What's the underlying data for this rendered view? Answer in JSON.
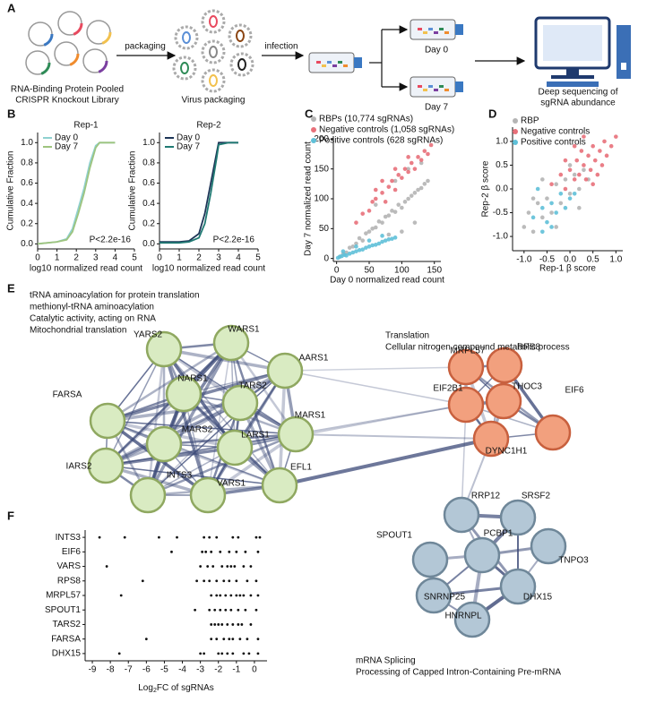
{
  "panel_labels": [
    "A",
    "B",
    "C",
    "D",
    "E",
    "F"
  ],
  "schematic": {
    "library_label": [
      "RNA-Binding Protein Pooled",
      "CRISPR Knockout Library"
    ],
    "packaging": "packaging",
    "virus_label": "Virus packaging",
    "infection": "infection",
    "day0": "Day 0",
    "day7": "Day 7",
    "sequencing_label": [
      "Deep sequencing of",
      "sgRNA abundance"
    ]
  },
  "chart_data": [
    {
      "type": "line",
      "title": "Rep-1",
      "xlabel": "log10 normalized read count",
      "ylabel": "Cumulative Fraction",
      "annotation": "P<2.2e-16",
      "x": [
        0,
        1,
        1.5,
        1.8,
        2.1,
        2.4,
        2.7,
        3.0,
        3.2,
        4.0
      ],
      "series": [
        {
          "name": "Day 0",
          "color": "#8fd1d0",
          "values": [
            0,
            0.02,
            0.05,
            0.15,
            0.35,
            0.55,
            0.8,
            0.97,
            1,
            1
          ]
        },
        {
          "name": "Day 7",
          "color": "#9ec47e",
          "values": [
            0,
            0.02,
            0.04,
            0.12,
            0.3,
            0.5,
            0.75,
            0.95,
            1,
            1
          ]
        }
      ],
      "xlim": [
        0,
        5
      ],
      "xticks": [
        0,
        1,
        2,
        3,
        4,
        5
      ],
      "ylim": [
        -0.05,
        1.1
      ],
      "yticks": [
        {
          "value": 0,
          "label": "0.0"
        },
        0.2,
        0.4,
        0.6,
        0.8,
        {
          "value": 1,
          "label": "1.0"
        }
      ]
    },
    {
      "type": "line",
      "title": "Rep-2",
      "xlabel": "log10 normalized read count",
      "ylabel": "Cumulative Fraction",
      "annotation": "P<2.2e-16",
      "x": [
        0,
        1,
        1.5,
        2.0,
        2.3,
        2.6,
        2.9,
        3.0,
        3.5,
        4.0
      ],
      "series": [
        {
          "name": "Day 0",
          "color": "#1d3557",
          "values": [
            0.02,
            0.02,
            0.03,
            0.1,
            0.3,
            0.6,
            0.9,
            1,
            1,
            1
          ]
        },
        {
          "name": "Day 7",
          "color": "#207a73",
          "values": [
            0.01,
            0.01,
            0.02,
            0.06,
            0.2,
            0.5,
            0.85,
            0.98,
            1,
            1
          ]
        }
      ],
      "xlim": [
        0,
        5
      ],
      "xticks": [
        0,
        1,
        2,
        3,
        4,
        5
      ],
      "ylim": [
        -0.05,
        1.1
      ],
      "yticks": [
        {
          "value": 0,
          "label": "0.0"
        },
        0.2,
        0.4,
        0.6,
        0.8,
        {
          "value": 1,
          "label": "1.0"
        }
      ]
    },
    {
      "type": "scatter",
      "xlabel": "Day 0 normalized read count",
      "ylabel": "Day 7 normalized read count",
      "xlim": [
        -5,
        160
      ],
      "xticks": [
        0,
        50,
        100,
        150
      ],
      "ylim": [
        -5,
        205
      ],
      "yticks": [
        0,
        50,
        100,
        150,
        200
      ],
      "series": [
        {
          "name": "RBPs (10,774 sgRNAs)",
          "color": "#b4b4b4",
          "x": [
            5,
            10,
            15,
            20,
            25,
            30,
            35,
            40,
            45,
            50,
            55,
            60,
            65,
            70,
            75,
            80,
            85,
            90,
            95,
            100,
            105,
            110,
            115,
            120,
            125,
            130,
            135,
            140,
            100,
            120,
            80,
            60,
            90,
            110,
            130
          ],
          "y": [
            3,
            8,
            10,
            18,
            20,
            25,
            34,
            30,
            42,
            45,
            50,
            52,
            62,
            60,
            70,
            72,
            80,
            78,
            90,
            85,
            95,
            100,
            105,
            110,
            115,
            118,
            125,
            130,
            45,
            60,
            40,
            90,
            130,
            150,
            160
          ]
        },
        {
          "name": "Negative controls (1,058 sgRNAs)",
          "color": "#e8707a",
          "x": [
            30,
            40,
            50,
            55,
            60,
            70,
            75,
            80,
            85,
            90,
            95,
            100,
            105,
            110,
            115,
            120,
            125,
            130,
            135,
            140,
            145,
            70,
            90,
            110,
            60
          ],
          "y": [
            60,
            75,
            80,
            95,
            100,
            110,
            95,
            120,
            130,
            115,
            140,
            135,
            150,
            145,
            160,
            150,
            170,
            165,
            180,
            175,
            190,
            130,
            150,
            170,
            115
          ]
        },
        {
          "name": "Positive controls (628 sgRNAs)",
          "color": "#5fc0d8",
          "x": [
            2,
            5,
            8,
            12,
            15,
            20,
            25,
            30,
            35,
            40,
            45,
            50,
            55,
            60,
            65,
            70,
            75,
            80,
            85,
            90,
            10,
            30,
            50,
            70
          ],
          "y": [
            1,
            3,
            4,
            6,
            5,
            8,
            10,
            12,
            14,
            15,
            18,
            20,
            22,
            23,
            25,
            28,
            30,
            32,
            33,
            35,
            12,
            20,
            30,
            38
          ]
        }
      ]
    },
    {
      "type": "scatter",
      "xlabel": "Rep-1 β score",
      "ylabel": "Rep-2 β score",
      "xlim": [
        -1.25,
        1.15
      ],
      "xticks": [
        {
          "value": -1,
          "label": "-1.0"
        },
        -0.5,
        {
          "value": 0,
          "label": "0.0"
        },
        0.5,
        {
          "value": 1,
          "label": "1.0"
        }
      ],
      "ylim": [
        -1.3,
        1.3
      ],
      "yticks": [
        {
          "value": -1,
          "label": "-1.0"
        },
        -0.5,
        {
          "value": 0,
          "label": "0.0"
        },
        0.5,
        {
          "value": 1,
          "label": "1.0"
        }
      ],
      "series": [
        {
          "name": "RBP",
          "color": "#b4b4b4",
          "x": [
            -1.0,
            -0.9,
            -0.8,
            -0.7,
            -0.6,
            -0.5,
            -0.4,
            -0.3,
            -0.2,
            -0.1,
            0.0,
            0.1,
            0.2,
            0.3,
            0.4,
            -0.6,
            -0.3,
            0.0,
            -0.8,
            0.2
          ],
          "y": [
            -0.8,
            -0.5,
            -0.9,
            -0.3,
            -0.6,
            -0.2,
            -0.5,
            0.1,
            -0.3,
            0.2,
            -0.1,
            0.3,
            0.0,
            0.4,
            0.2,
            0.2,
            -0.8,
            0.5,
            -0.2,
            -0.4
          ]
        },
        {
          "name": "Negative controls",
          "color": "#e8707a",
          "x": [
            -0.4,
            -0.2,
            -0.1,
            0.0,
            0.1,
            0.15,
            0.2,
            0.25,
            0.3,
            0.35,
            0.4,
            0.45,
            0.5,
            0.55,
            0.6,
            0.65,
            0.7,
            0.75,
            0.8,
            0.9,
            1.0,
            0.3,
            0.1,
            -0.1,
            0.5
          ],
          "y": [
            0.1,
            0.3,
            0.0,
            0.4,
            0.2,
            0.6,
            0.3,
            0.8,
            0.5,
            0.2,
            0.7,
            0.4,
            0.9,
            0.6,
            0.3,
            0.8,
            0.5,
            1.0,
            0.7,
            0.9,
            1.1,
            1.1,
            0.9,
            0.6,
            0.1
          ]
        },
        {
          "name": "Positive controls",
          "color": "#5fc0d8",
          "x": [
            -0.8,
            -0.6,
            -0.5,
            -0.4,
            -0.3,
            -0.2,
            -0.1,
            0.0,
            -0.6,
            -0.4,
            0.1,
            -0.7
          ],
          "y": [
            -0.6,
            -0.4,
            -0.7,
            -0.3,
            -0.5,
            -0.1,
            -0.4,
            -0.2,
            -0.9,
            -0.8,
            -0.1,
            0.0
          ]
        }
      ]
    },
    {
      "type": "strip",
      "xlabel_parts": [
        "Log",
        "2",
        "FC of sgRNAs"
      ],
      "color": "#111111",
      "categories": [
        "INTS3",
        "EIF6",
        "VARS",
        "RPS8",
        "MRPL57",
        "SPOUT1",
        "TARS2",
        "FARSA",
        "DHX15"
      ],
      "values": [
        [
          -8.6,
          -7.2,
          -5.3,
          -4.3,
          -2.8,
          -2.5,
          -2.1,
          -1.2,
          -0.9,
          0.1,
          0.3
        ],
        [
          -4.6,
          -2.9,
          -2.7,
          -2.4,
          -1.9,
          -1.4,
          -1.0,
          -0.5,
          0.2
        ],
        [
          -8.2,
          -3.0,
          -2.6,
          -2.3,
          -1.8,
          -1.5,
          -1.3,
          -1.1,
          -0.6,
          -0.2
        ],
        [
          -6.2,
          -3.2,
          -2.8,
          -2.5,
          -2.1,
          -1.7,
          -1.4,
          -1.0,
          -0.4,
          0.1
        ],
        [
          -7.4,
          -2.4,
          -2.1,
          -1.9,
          -1.6,
          -1.3,
          -1.0,
          -0.8,
          -0.6,
          -0.2,
          0.2
        ],
        [
          -3.3,
          -2.5,
          -2.2,
          -1.9,
          -1.6,
          -1.3,
          -0.9,
          -0.5,
          0.1
        ],
        [
          -2.4,
          -2.2,
          -2.0,
          -1.8,
          -1.5,
          -1.2,
          -0.9,
          -0.7,
          -0.2
        ],
        [
          -6.0,
          -2.4,
          -2.1,
          -1.7,
          -1.4,
          -1.2,
          -0.8,
          -0.4,
          0.2
        ],
        [
          -7.5,
          -3.0,
          -2.8,
          -2.0,
          -1.8,
          -1.5,
          -1.2,
          -0.6,
          -0.3,
          0.2
        ]
      ],
      "xlim": [
        -9.4,
        0.7
      ],
      "xticks": [
        -9,
        -8,
        -7,
        -6,
        -5,
        -4,
        -3,
        -2,
        -1,
        0
      ]
    }
  ],
  "network": {
    "groups": [
      {
        "terms": [
          "tRNA aminoacylation for protein translation",
          "methionyl-tRNA aminoacylation",
          "Catalytic activity, acting on RNA",
          "Mitochondrial translation"
        ],
        "nodes": [
          "YARS2",
          "WARS1",
          "AARS1",
          "FARSA",
          "NARS1",
          "TARS2",
          "MARS1",
          "MARS2",
          "LARS1",
          "IARS2",
          "INTS3",
          "VARS1",
          "EFL1"
        ]
      },
      {
        "terms": [
          "Translation",
          "Cellular nitrogen compound metabolic process"
        ],
        "nodes": [
          "MRPL57",
          "RPS8",
          "EIF2B1",
          "THOC3",
          "EIF6",
          "DYNC1H1"
        ]
      },
      {
        "terms": [
          "mRNA Splicing",
          "Processing of Capped Intron-Containing Pre-mRNA"
        ],
        "nodes": [
          "RRP12",
          "SRSF2",
          "SPOUT1",
          "PCBP1",
          "TNPO3",
          "SNRNP25",
          "DHX15",
          "HNRNPL"
        ]
      }
    ]
  }
}
